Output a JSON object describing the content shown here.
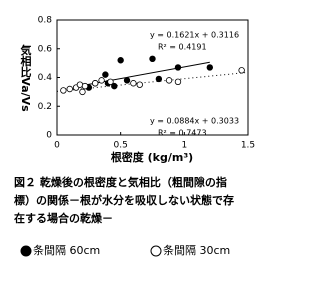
{
  "chart_data": {
    "type": "scatter",
    "xlabel": "根密度 (kg/m³)",
    "ylabel": "気相比Va/Vs",
    "xlim": [
      0,
      1.5
    ],
    "xticks": [
      0,
      0.5,
      1,
      1.5
    ],
    "ylim": [
      0,
      0.8
    ],
    "yticks": [
      0,
      0.2,
      0.4,
      0.6,
      0.8
    ],
    "series": [
      {
        "name": "条間隔 60cm",
        "color": "#000000",
        "marker": "filled",
        "x": [
          0.25,
          0.3,
          0.38,
          0.4,
          0.45,
          0.5,
          0.55,
          0.75,
          0.8,
          0.95,
          1.2
        ],
        "values": [
          0.33,
          0.36,
          0.42,
          0.36,
          0.34,
          0.52,
          0.38,
          0.53,
          0.39,
          0.47,
          0.47
        ]
      },
      {
        "name": "条間隔 30cm",
        "color": "#000000",
        "marker": "open",
        "x": [
          0.05,
          0.1,
          0.15,
          0.18,
          0.2,
          0.22,
          0.3,
          0.35,
          0.42,
          0.6,
          0.65,
          0.88,
          0.95,
          1.45
        ],
        "values": [
          0.31,
          0.32,
          0.33,
          0.35,
          0.3,
          0.34,
          0.36,
          0.38,
          0.37,
          0.36,
          0.35,
          0.38,
          0.37,
          0.45
        ]
      }
    ],
    "trendlines": [
      {
        "label": "y = 0.1621x + 0.3116",
        "r2": "R² = 0.4191",
        "style": "solid",
        "x": [
          0.2,
          1.2
        ],
        "values": [
          0.344,
          0.506
        ]
      },
      {
        "label": "y = 0.0884x + 0.3033",
        "r2": "R² = 0.7473",
        "style": "dotted",
        "x": [
          0,
          1.5
        ],
        "values": [
          0.3033,
          0.4359
        ]
      }
    ],
    "caption": [
      "図２ 乾燥後の根密度と気相比（粗間隙の指",
      "標）の関係－根が水分を吸収しない状態で存",
      "在する場合の乾燥－"
    ]
  }
}
